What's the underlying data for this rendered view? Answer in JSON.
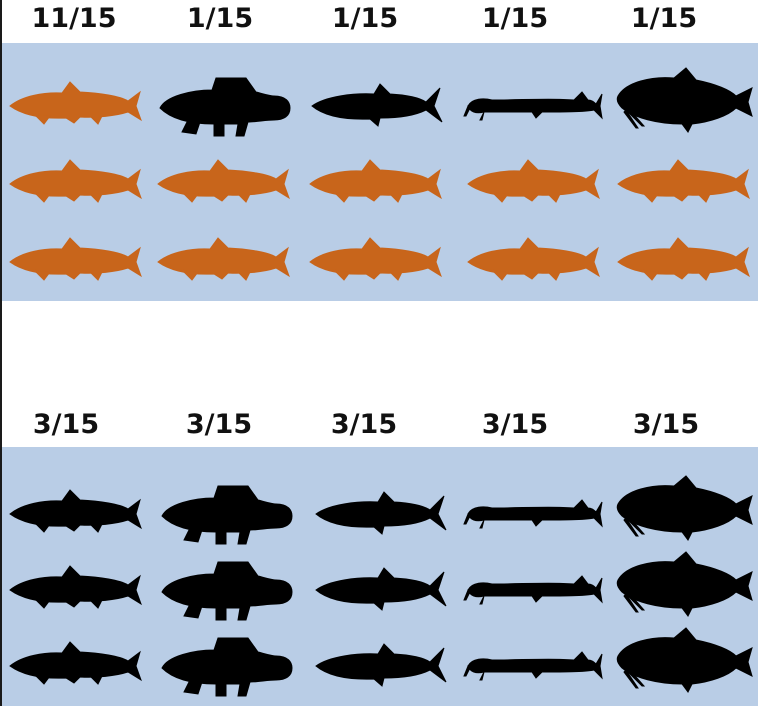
{
  "colors": {
    "panel_background": "#b9cde6",
    "highlight_fish": "#c8651b",
    "default_fish": "#000000"
  },
  "icons": [
    "trout-icon",
    "goby-icon",
    "herring-icon",
    "dragonfish-icon",
    "barbel-fish-icon"
  ],
  "panels": [
    {
      "name": "top",
      "labels": [
        "11/15",
        "1/15",
        "1/15",
        "1/15",
        "1/15"
      ],
      "rows": [
        [
          "trout-highlight",
          "goby",
          "herring",
          "dragonfish",
          "barbel"
        ],
        [
          "trout-highlight",
          "trout-highlight",
          "trout-highlight",
          "trout-highlight",
          "trout-highlight"
        ],
        [
          "trout-highlight",
          "trout-highlight",
          "trout-highlight",
          "trout-highlight",
          "trout-highlight"
        ]
      ]
    },
    {
      "name": "bottom",
      "labels": [
        "3/15",
        "3/15",
        "3/15",
        "3/15",
        "3/15"
      ],
      "rows": [
        [
          "trout",
          "goby",
          "herring",
          "dragonfish",
          "barbel"
        ],
        [
          "trout",
          "goby",
          "herring",
          "dragonfish",
          "barbel"
        ],
        [
          "trout",
          "goby",
          "herring",
          "dragonfish",
          "barbel"
        ]
      ]
    }
  ]
}
